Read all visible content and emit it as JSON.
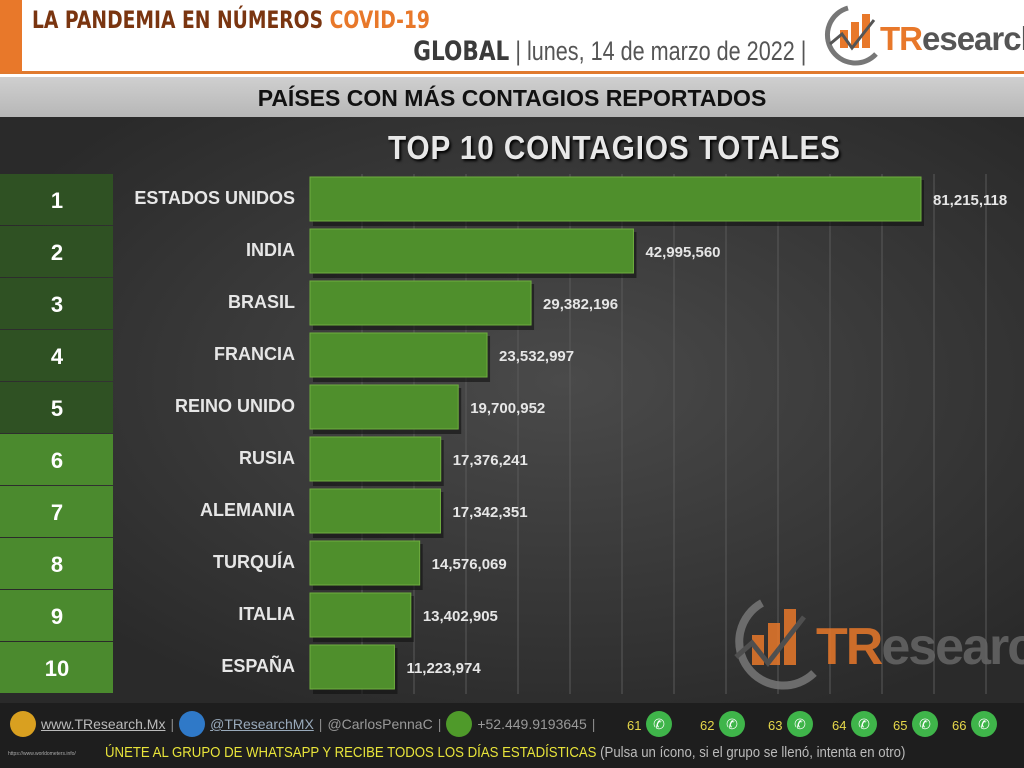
{
  "header": {
    "title_main": "LA PANDEMIA EN NÚMEROS",
    "title_accent": "COVID-19",
    "scope": "GLOBAL",
    "date": "lunes, 14 de marzo de 2022",
    "logo_text": "TResearch"
  },
  "band_title": "PAÍSES CON MÁS CONTAGIOS REPORTADOS",
  "chart_data": {
    "type": "bar",
    "orientation": "horizontal",
    "title": "TOP 10 CONTAGIOS TOTALES",
    "ranks": [
      "1",
      "2",
      "3",
      "4",
      "5",
      "6",
      "7",
      "8",
      "9",
      "10"
    ],
    "categories": [
      "ESTADOS UNIDOS",
      "INDIA",
      "BRASIL",
      "FRANCIA",
      "REINO UNIDO",
      "RUSIA",
      "ALEMANIA",
      "TURQUÍA",
      "ITALIA",
      "ESPAÑA"
    ],
    "values": [
      81215118,
      42995560,
      29382196,
      23532997,
      19700952,
      17376241,
      17342351,
      14576069,
      13402905,
      11223974
    ],
    "labels": [
      "81,215,118",
      "42,995,560",
      "29,382,196",
      "23,532,997",
      "19,700,952",
      "17,376,241",
      "17,342,351",
      "14,576,069",
      "13,402,905",
      "11,223,974"
    ],
    "grid": true,
    "colors": {
      "bar": "#4f8f2c",
      "rank_top5": "#2f5123",
      "rank_rest": "#4b8a2e"
    }
  },
  "footer": {
    "website": "www.TResearch.Mx",
    "twitter": "@TResearchMX",
    "personal": "@CarlosPennaC",
    "phone": "+52.449.9193645",
    "groups": [
      "61",
      "62",
      "63",
      "64",
      "65",
      "66"
    ],
    "join_text": "ÚNETE AL GRUPO DE WHATSAPP Y RECIBE TODOS LOS DÍAS ESTADÍSTICAS",
    "join_note": "(Pulsa un ícono, si el grupo se llenó, intenta en otro)",
    "source": "https://www.worldometers.info/"
  }
}
